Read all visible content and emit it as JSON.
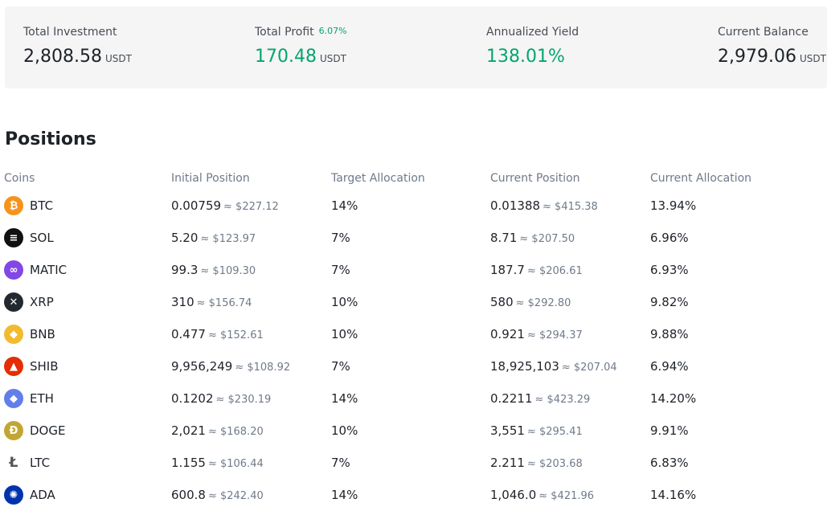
{
  "summary": {
    "total_investment": {
      "label": "Total Investment",
      "value": "2,808.58",
      "unit": "USDT"
    },
    "total_profit": {
      "label": "Total Profit",
      "percent": "6.07%",
      "value": "170.48",
      "unit": "USDT"
    },
    "annualized_yield": {
      "label": "Annualized Yield",
      "value": "138.01%"
    },
    "current_balance": {
      "label": "Current Balance",
      "value": "2,979.06",
      "unit": "USDT"
    }
  },
  "positions": {
    "title": "Positions",
    "headers": {
      "coins": "Coins",
      "initial_position": "Initial Position",
      "target_allocation": "Target Allocation",
      "current_position": "Current Position",
      "current_allocation": "Current Allocation"
    },
    "rows": [
      {
        "coin": "BTC",
        "icon": "bitcoin-icon",
        "color": "#f7931a",
        "glyph": "₿",
        "initial_qty": "0.00759",
        "initial_usd": "≈ $227.12",
        "target": "14%",
        "current_qty": "0.01388",
        "current_usd": "≈ $415.38",
        "current_alloc": "13.94%"
      },
      {
        "coin": "SOL",
        "icon": "solana-icon",
        "color": "#111111",
        "glyph": "≡",
        "initial_qty": "5.20",
        "initial_usd": "≈ $123.97",
        "target": "7%",
        "current_qty": "8.71",
        "current_usd": "≈ $207.50",
        "current_alloc": "6.96%"
      },
      {
        "coin": "MATIC",
        "icon": "polygon-icon",
        "color": "#8247e5",
        "glyph": "∞",
        "initial_qty": "99.3",
        "initial_usd": "≈ $109.30",
        "target": "7%",
        "current_qty": "187.7",
        "current_usd": "≈ $206.61",
        "current_alloc": "6.93%"
      },
      {
        "coin": "XRP",
        "icon": "xrp-icon",
        "color": "#23292f",
        "glyph": "✕",
        "initial_qty": "310",
        "initial_usd": "≈ $156.74",
        "target": "10%",
        "current_qty": "580",
        "current_usd": "≈ $292.80",
        "current_alloc": "9.82%"
      },
      {
        "coin": "BNB",
        "icon": "bnb-icon",
        "color": "#f3ba2f",
        "glyph": "◆",
        "initial_qty": "0.477",
        "initial_usd": "≈ $152.61",
        "target": "10%",
        "current_qty": "0.921",
        "current_usd": "≈ $294.37",
        "current_alloc": "9.88%"
      },
      {
        "coin": "SHIB",
        "icon": "shiba-inu-icon",
        "color": "#e42d04",
        "glyph": "▲",
        "initial_qty": "9,956,249",
        "initial_usd": "≈ $108.92",
        "target": "7%",
        "current_qty": "18,925,103",
        "current_usd": "≈ $207.04",
        "current_alloc": "6.94%"
      },
      {
        "coin": "ETH",
        "icon": "ethereum-icon",
        "color": "#627eea",
        "glyph": "◆",
        "initial_qty": "0.1202",
        "initial_usd": "≈ $230.19",
        "target": "14%",
        "current_qty": "0.2211",
        "current_usd": "≈ $423.29",
        "current_alloc": "14.20%"
      },
      {
        "coin": "DOGE",
        "icon": "dogecoin-icon",
        "color": "#c2a633",
        "glyph": "Ð",
        "initial_qty": "2,021",
        "initial_usd": "≈ $168.20",
        "target": "10%",
        "current_qty": "3,551",
        "current_usd": "≈ $295.41",
        "current_alloc": "9.91%"
      },
      {
        "coin": "LTC",
        "icon": "litecoin-icon",
        "color": "#ffffff",
        "glyph": "Ł",
        "initial_qty": "1.155",
        "initial_usd": "≈ $106.44",
        "target": "7%",
        "current_qty": "2.211",
        "current_usd": "≈ $203.68",
        "current_alloc": "6.83%"
      },
      {
        "coin": "ADA",
        "icon": "cardano-icon",
        "color": "#0033ad",
        "glyph": "✺",
        "initial_qty": "600.8",
        "initial_usd": "≈ $242.40",
        "target": "14%",
        "current_qty": "1,046.0",
        "current_usd": "≈ $421.96",
        "current_alloc": "14.16%"
      }
    ]
  }
}
